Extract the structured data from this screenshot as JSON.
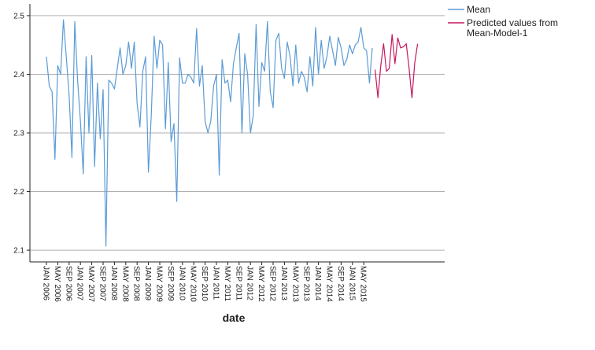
{
  "chart_data": {
    "type": "line",
    "xlabel": "date",
    "ylabel": "",
    "ylim": [
      2.08,
      2.52
    ],
    "y_ticks": [
      "2.1",
      "2.2",
      "2.3",
      "2.4",
      "2.5"
    ],
    "y_tick_values": [
      2.1,
      2.2,
      2.3,
      2.4,
      2.5
    ],
    "grid": "horizontal",
    "legend_position": "top-right",
    "x_tick_labels": [
      "JAN 2006",
      "MAY 2006",
      "SEP 2006",
      "JAN 2007",
      "MAY 2007",
      "SEP 2007",
      "JAN 2008",
      "MAY 2008",
      "SEP 2008",
      "JAN 2009",
      "MAY 2009",
      "SEP 2009",
      "JAN 2010",
      "MAY 2010",
      "SEP 2010",
      "JAN 2011",
      "MAY 2011",
      "SEP 2011",
      "JAN 2012",
      "MAY 2012",
      "SEP 2012",
      "JAN 2013",
      "MAY 2013",
      "SEP 2013",
      "JAN 2014",
      "MAY 2014",
      "SEP 2014",
      "JAN 2015",
      "MAY 2015"
    ],
    "series": [
      {
        "name": "Mean",
        "color": "#5b9bd5",
        "start": "JAN 2006",
        "values": [
          2.43,
          2.38,
          2.37,
          2.255,
          2.415,
          2.4,
          2.493,
          2.43,
          2.365,
          2.258,
          2.49,
          2.39,
          2.32,
          2.23,
          2.43,
          2.3,
          2.432,
          2.243,
          2.385,
          2.29,
          2.374,
          2.107,
          2.39,
          2.385,
          2.375,
          2.41,
          2.445,
          2.4,
          2.415,
          2.455,
          2.41,
          2.455,
          2.35,
          2.31,
          2.405,
          2.43,
          2.233,
          2.33,
          2.465,
          2.41,
          2.458,
          2.45,
          2.307,
          2.42,
          2.285,
          2.316,
          2.183,
          2.428,
          2.385,
          2.385,
          2.4,
          2.395,
          2.385,
          2.478,
          2.38,
          2.415,
          2.32,
          2.3,
          2.32,
          2.38,
          2.4,
          2.228,
          2.425,
          2.385,
          2.39,
          2.353,
          2.418,
          2.445,
          2.47,
          2.3,
          2.435,
          2.4,
          2.3,
          2.33,
          2.485,
          2.345,
          2.42,
          2.405,
          2.49,
          2.37,
          2.343,
          2.458,
          2.47,
          2.41,
          2.393,
          2.455,
          2.43,
          2.38,
          2.45,
          2.385,
          2.405,
          2.395,
          2.37,
          2.43,
          2.38,
          2.48,
          2.4,
          2.458,
          2.41,
          2.43,
          2.465,
          2.44,
          2.415,
          2.463,
          2.445,
          2.415,
          2.425,
          2.45,
          2.435,
          2.45,
          2.455,
          2.48,
          2.445,
          2.44,
          2.385,
          2.445
        ]
      },
      {
        "name": "Predicted values from Mean-Model-1",
        "legend_lines": [
          "Predicted values from",
          "Mean-Model-1"
        ],
        "color": "#c8175d",
        "start": "MAY 2015 + 8 months",
        "values": [
          2.408,
          2.36,
          2.415,
          2.452,
          2.405,
          2.41,
          2.468,
          2.418,
          2.462,
          2.445,
          2.447,
          2.452,
          2.41,
          2.36,
          2.42,
          2.452
        ]
      }
    ]
  }
}
